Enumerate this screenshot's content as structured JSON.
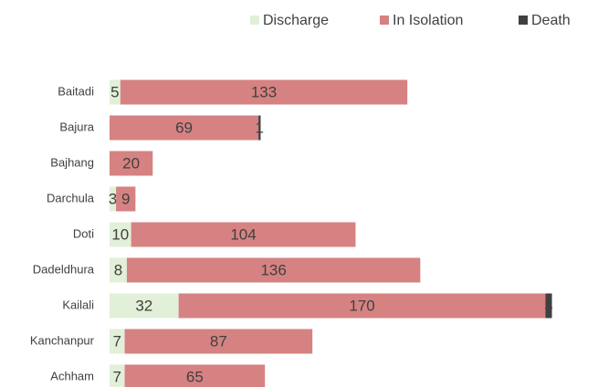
{
  "chart_data": {
    "type": "bar",
    "orientation": "horizontal",
    "stacked": true,
    "categories": [
      "Baitadi",
      "Bajura",
      "Bajhang",
      "Darchula",
      "Doti",
      "Dadeldhura",
      "Kailali",
      "Kanchanpur",
      "Achham"
    ],
    "series": [
      {
        "name": "Discharge",
        "color": "#e2efd9",
        "values": [
          5,
          null,
          null,
          3,
          10,
          8,
          32,
          7,
          7
        ]
      },
      {
        "name": "In Isolation",
        "color": "#d68282",
        "values": [
          133,
          69,
          20,
          9,
          104,
          136,
          170,
          87,
          65
        ]
      },
      {
        "name": "Death",
        "color": "#404040",
        "values": [
          null,
          1,
          null,
          null,
          null,
          null,
          3,
          null,
          null
        ]
      }
    ],
    "xlim": [
      0,
      220
    ],
    "legend": "top-right"
  }
}
